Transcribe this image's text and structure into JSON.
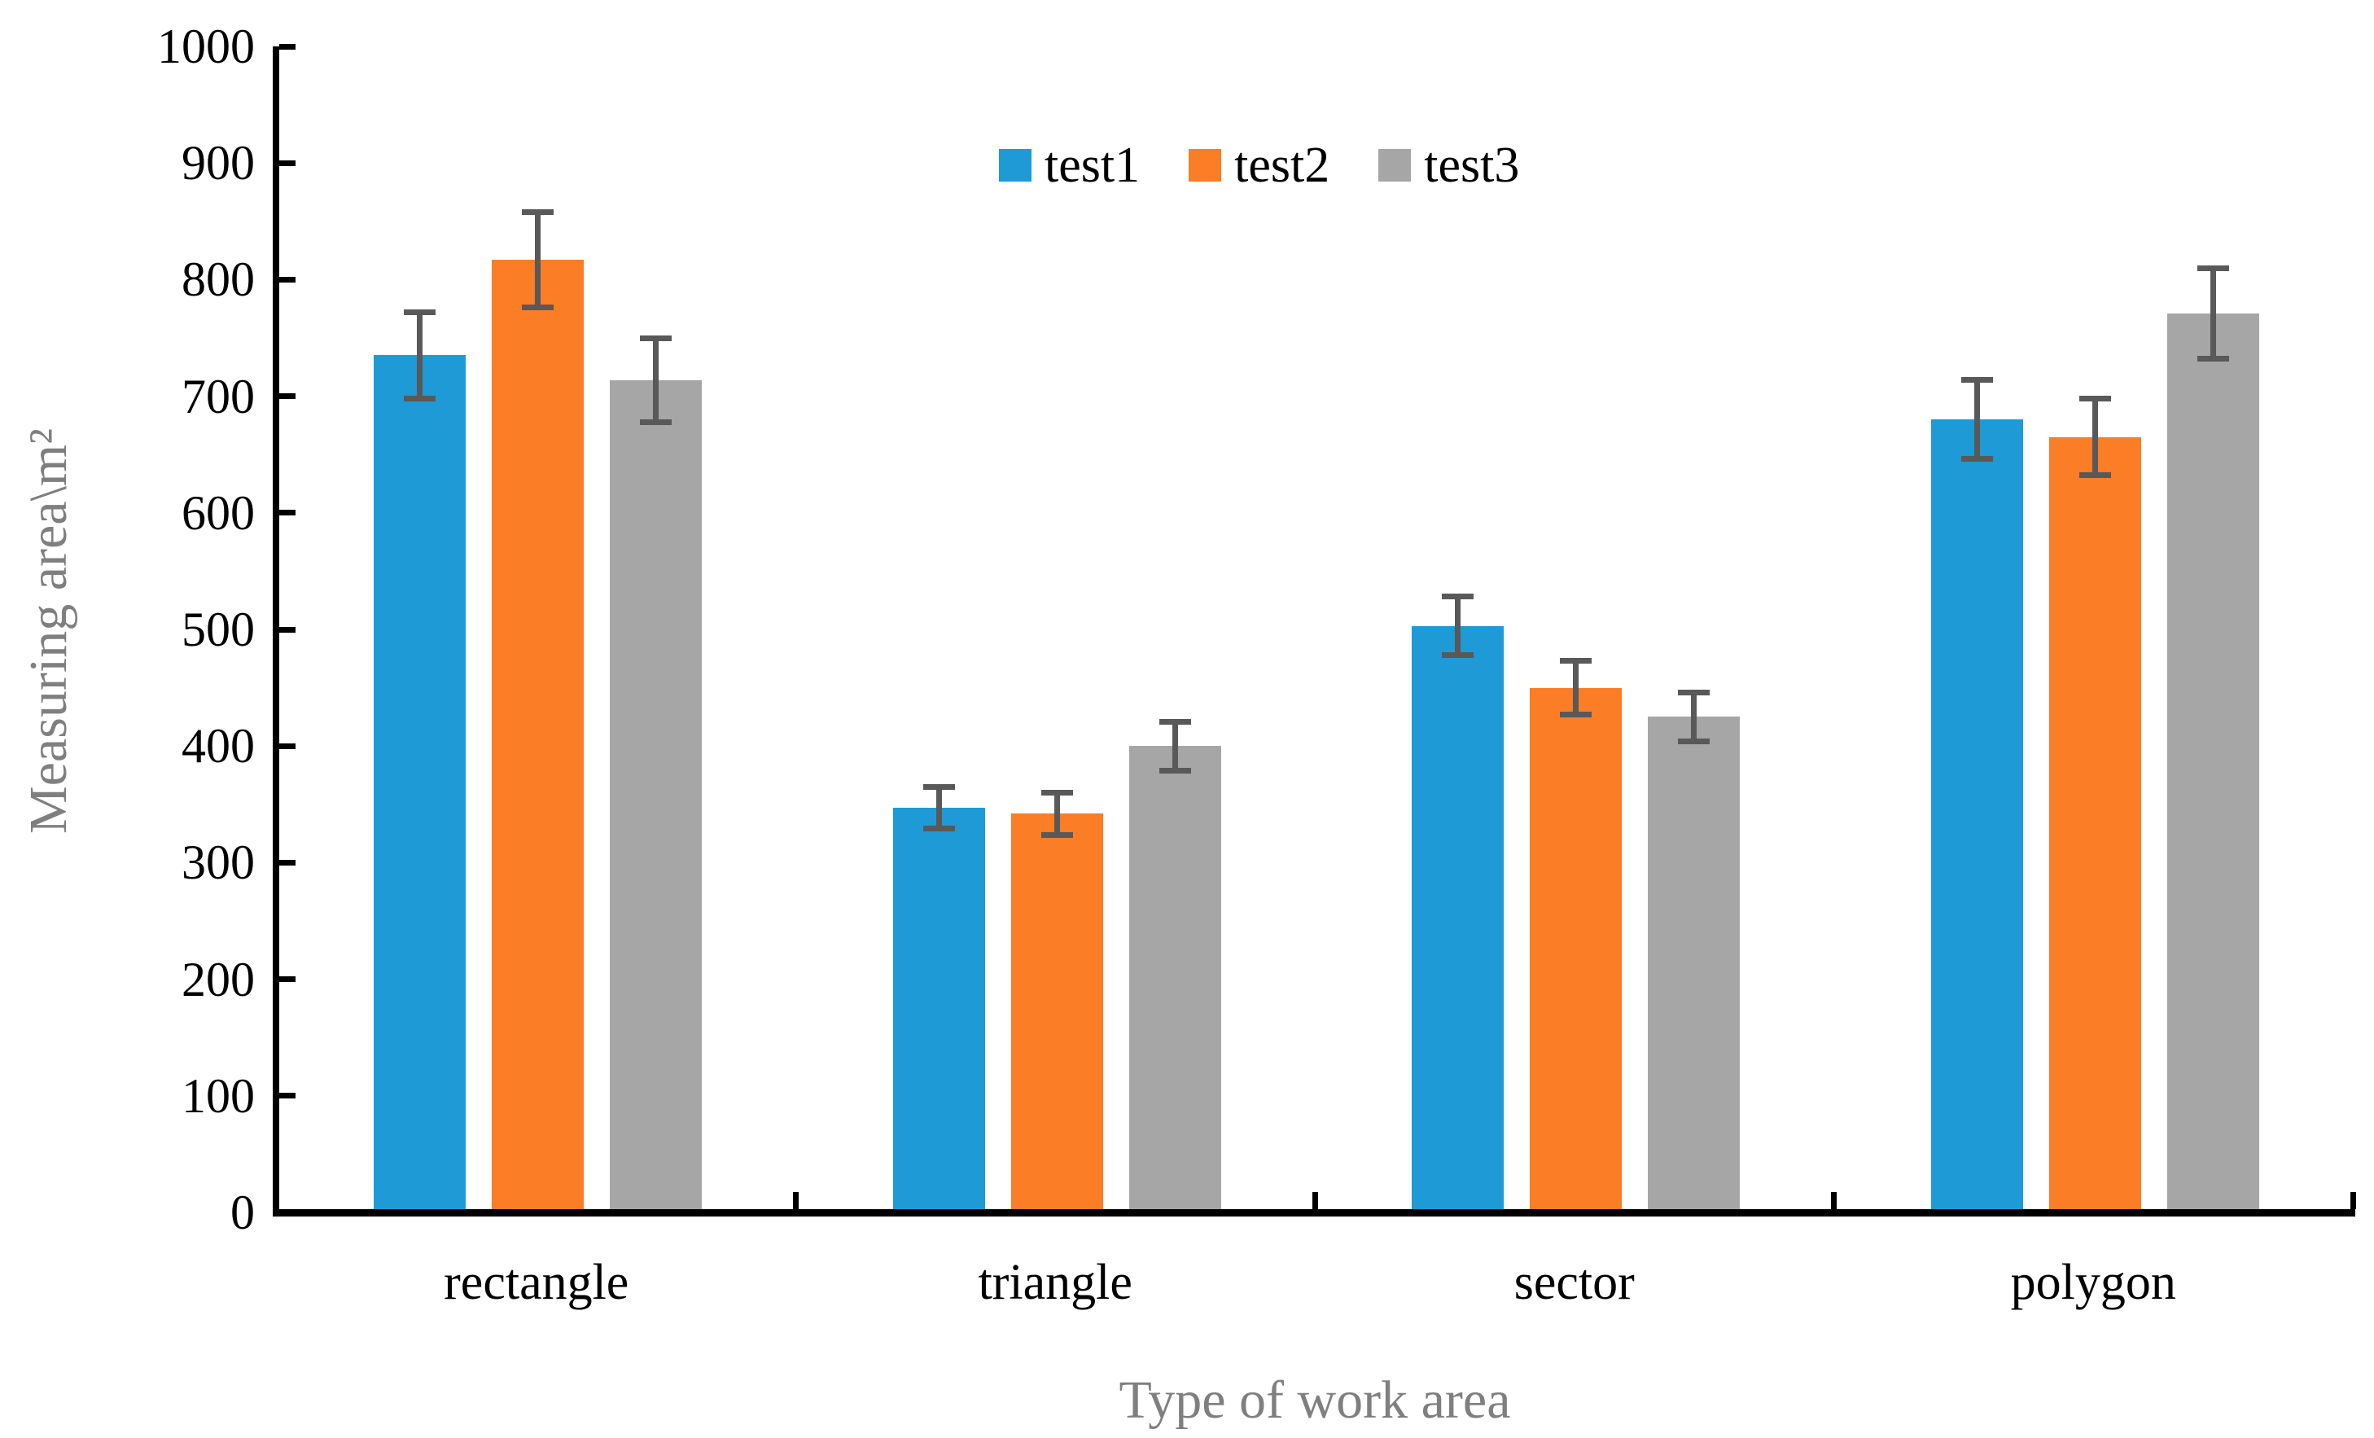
{
  "chart_data": {
    "type": "bar",
    "title": "",
    "xlabel": "Type of work area",
    "ylabel": "Measuring area\\m²",
    "categories": [
      "rectangle",
      "triangle",
      "sector",
      "polygon"
    ],
    "series": [
      {
        "name": "test1",
        "color": "#1E9AD6",
        "values": [
          735,
          347,
          503,
          680
        ],
        "errors": [
          37,
          18,
          25,
          34
        ]
      },
      {
        "name": "test2",
        "color": "#FB7D26",
        "values": [
          817,
          342,
          450,
          665
        ],
        "errors": [
          41,
          18,
          23,
          33
        ]
      },
      {
        "name": "test3",
        "color": "#A6A6A6",
        "values": [
          714,
          400,
          425,
          771
        ],
        "errors": [
          36,
          21,
          21,
          39
        ]
      }
    ],
    "ylim": [
      0,
      1000
    ],
    "yticks": [
      0,
      100,
      200,
      300,
      400,
      500,
      600,
      700,
      800,
      900,
      1000
    ],
    "grid": false,
    "error_bars": true,
    "legend_position": "top-center",
    "legend_labels": [
      "test1",
      "test2",
      "test3"
    ],
    "colors": {
      "axis": "#000000",
      "error_bar": "#595959",
      "tick_label": "#000000",
      "axis_title": "#7F7F7F",
      "background": "#FFFFFF"
    }
  }
}
